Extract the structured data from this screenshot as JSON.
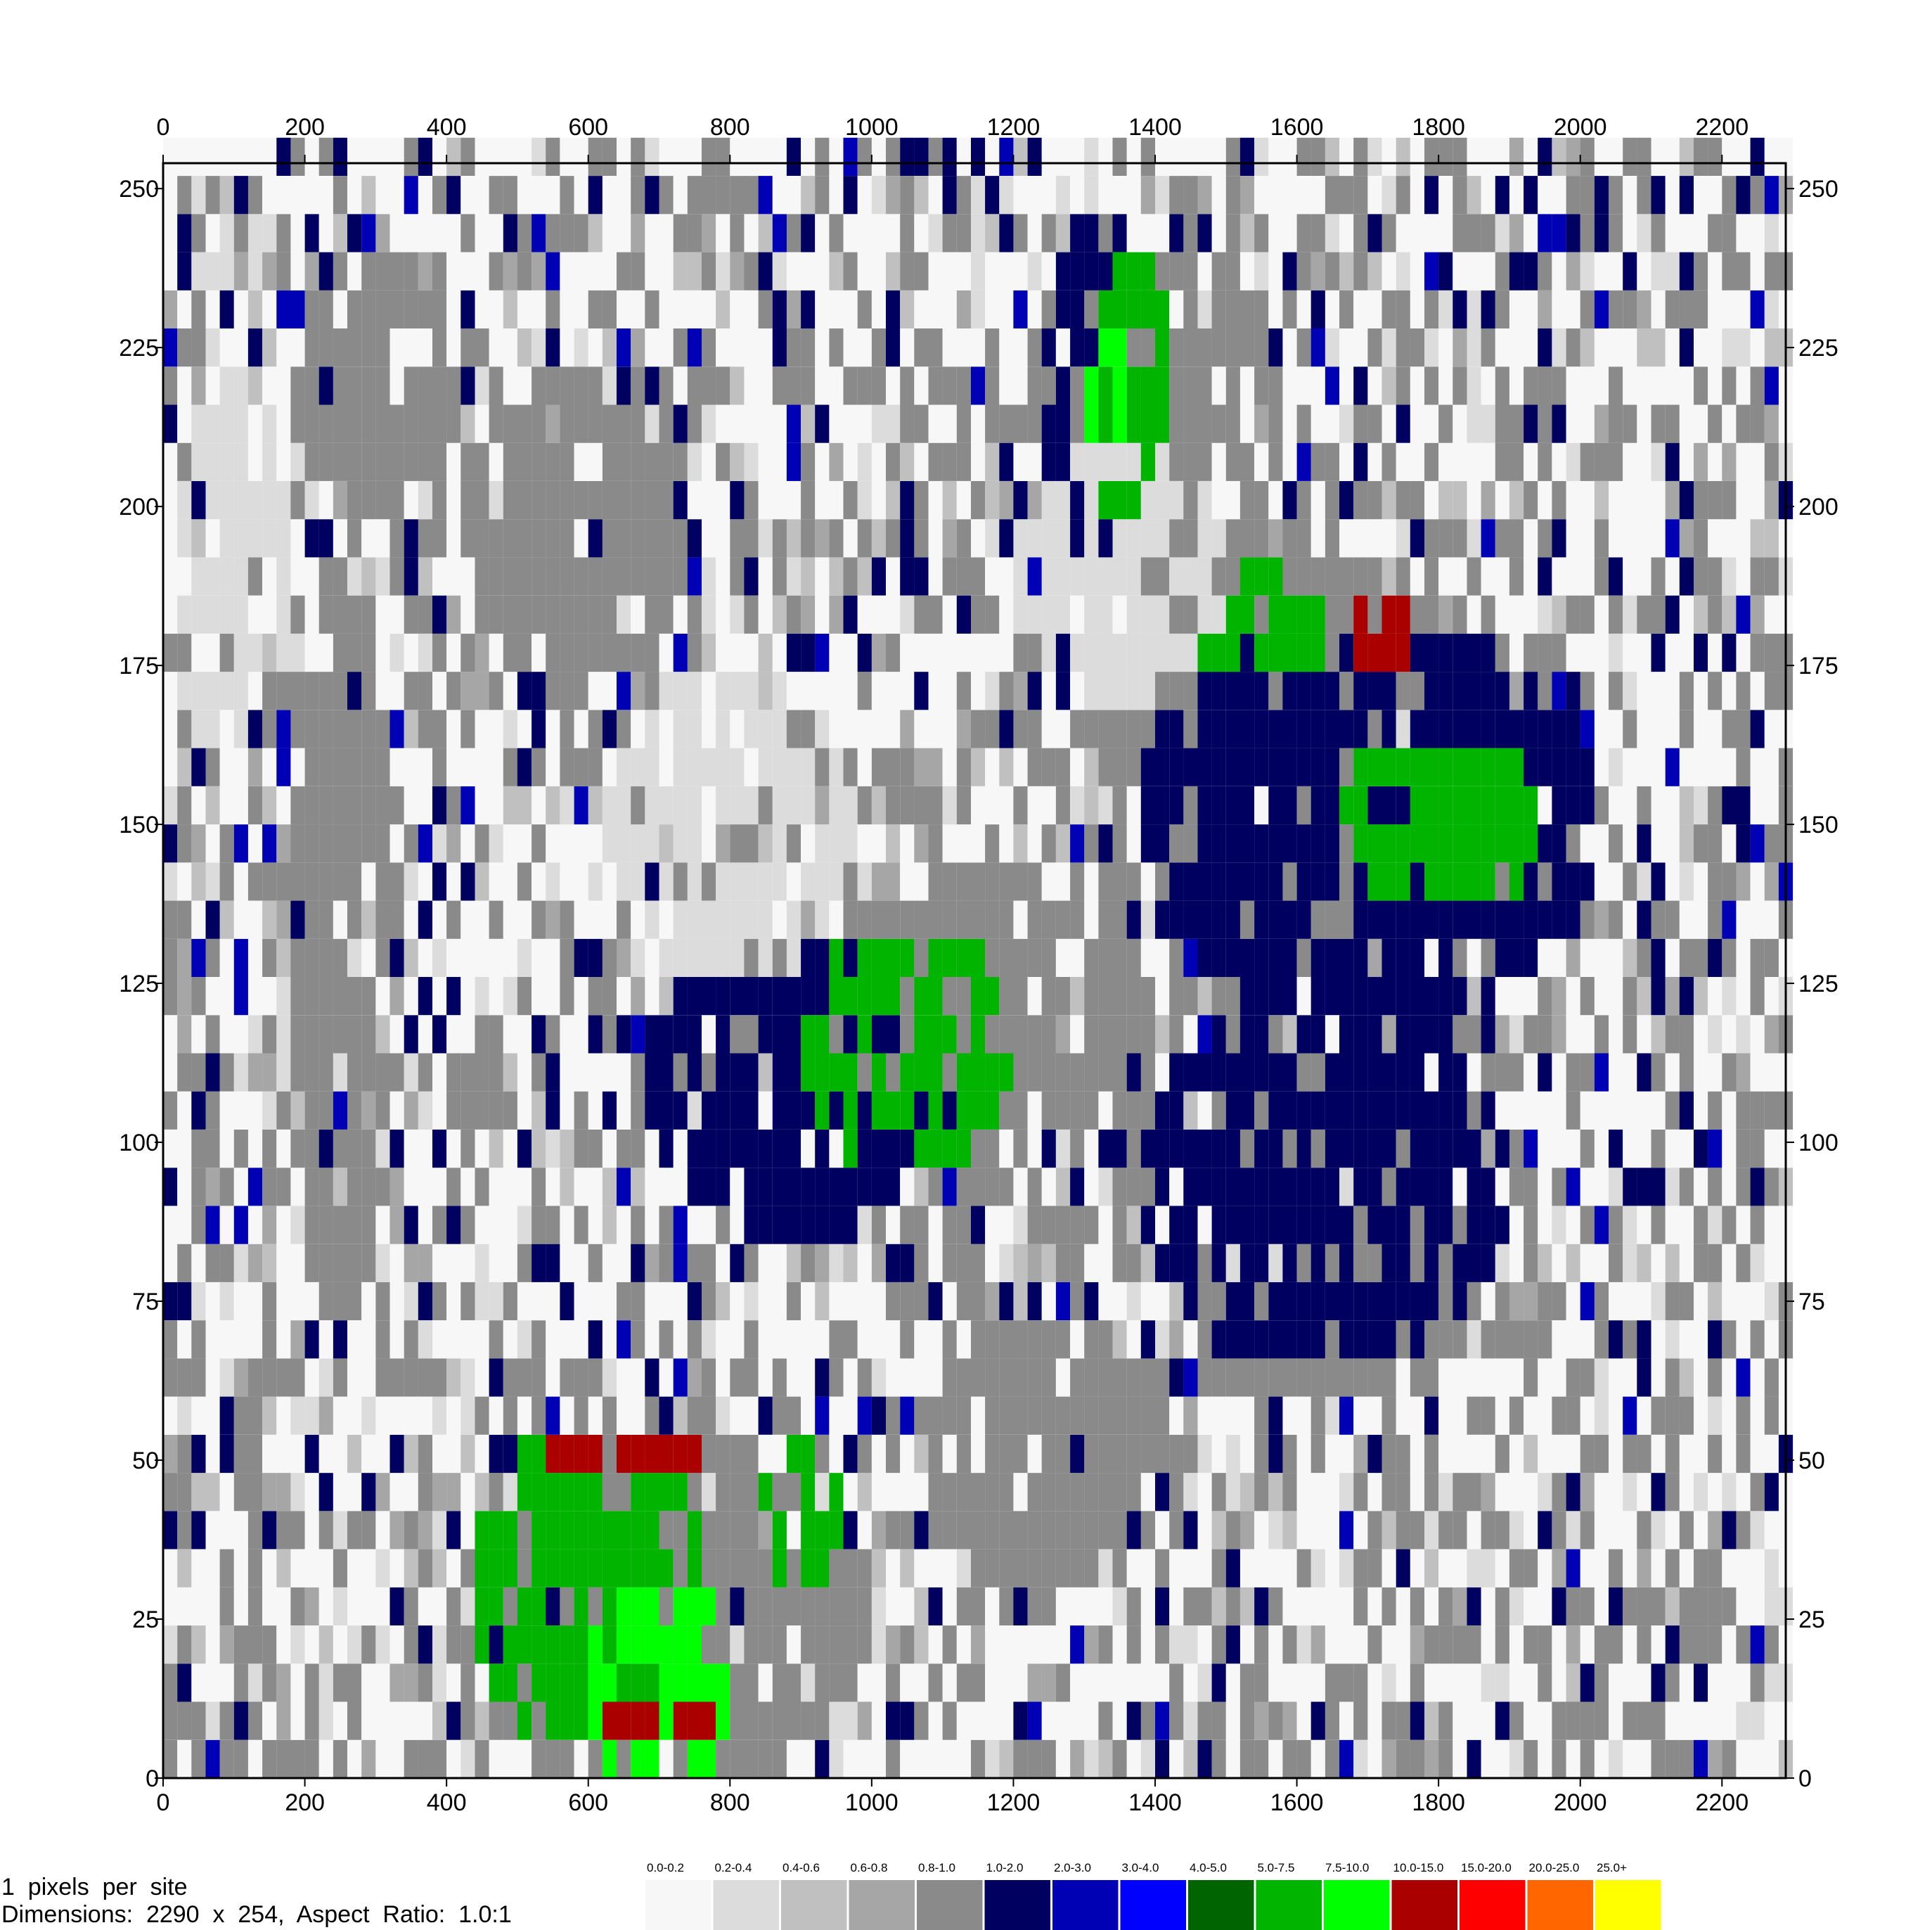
{
  "chart_data": {
    "type": "heatmap",
    "title": "",
    "xlabel": "",
    "ylabel": "",
    "xlim": [
      0,
      2290
    ],
    "ylim": [
      0,
      254
    ],
    "x_ticks": [
      0,
      200,
      400,
      600,
      800,
      1000,
      1200,
      1400,
      1600,
      1800,
      2000,
      2200
    ],
    "y_ticks": [
      0,
      25,
      50,
      75,
      100,
      125,
      150,
      175,
      200,
      225,
      250
    ],
    "legend": {
      "placement": "bottom-right",
      "bins": [
        {
          "label": "0.0-0.2",
          "color": "#f7f7f7"
        },
        {
          "label": "0.2-0.4",
          "color": "#dcdcdc"
        },
        {
          "label": "0.4-0.6",
          "color": "#c0c0c0"
        },
        {
          "label": "0.6-0.8",
          "color": "#a6a6a6"
        },
        {
          "label": "0.8-1.0",
          "color": "#8a8a8a"
        },
        {
          "label": "1.0-2.0",
          "color": "#000060"
        },
        {
          "label": "2.0-3.0",
          "color": "#0000b4"
        },
        {
          "label": "3.0-4.0",
          "color": "#0000ff"
        },
        {
          "label": "4.0-5.0",
          "color": "#006400"
        },
        {
          "label": "5.0-7.5",
          "color": "#00b400"
        },
        {
          "label": "7.5-10.0",
          "color": "#00ff00"
        },
        {
          "label": "10.0-15.0",
          "color": "#aa0000"
        },
        {
          "label": "15.0-20.0",
          "color": "#ff0000"
        },
        {
          "label": "20.0-25.0",
          "color": "#ff6600"
        },
        {
          "label": "25.0+",
          "color": "#ffff00"
        }
      ]
    },
    "regions": [
      {
        "bin": 4,
        "cx": 1400,
        "cy": 215,
        "rx": 190,
        "ry": 28
      },
      {
        "bin": 4,
        "cx": 1600,
        "cy": 165,
        "rx": 280,
        "ry": 30
      },
      {
        "bin": 4,
        "cx": 1150,
        "cy": 120,
        "rx": 250,
        "ry": 22
      },
      {
        "bin": 4,
        "cx": 1650,
        "cy": 85,
        "rx": 230,
        "ry": 28
      },
      {
        "bin": 4,
        "cx": 700,
        "cy": 25,
        "rx": 300,
        "ry": 28
      },
      {
        "bin": 4,
        "cx": 580,
        "cy": 195,
        "rx": 160,
        "ry": 25
      },
      {
        "bin": 4,
        "cx": 250,
        "cy": 130,
        "rx": 80,
        "ry": 60
      },
      {
        "bin": 4,
        "cx": 300,
        "cy": 220,
        "rx": 120,
        "ry": 20
      },
      {
        "bin": 4,
        "cx": 1250,
        "cy": 50,
        "rx": 180,
        "ry": 22
      },
      {
        "bin": 5,
        "cx": 1300,
        "cy": 205,
        "rx": 60,
        "ry": 40
      },
      {
        "bin": 5,
        "cx": 1700,
        "cy": 150,
        "rx": 330,
        "ry": 32
      },
      {
        "bin": 5,
        "cx": 1640,
        "cy": 95,
        "rx": 270,
        "ry": 30
      },
      {
        "bin": 5,
        "cx": 900,
        "cy": 110,
        "rx": 220,
        "ry": 25
      },
      {
        "bin": 9,
        "cx": 1370,
        "cy": 215,
        "rx": 50,
        "ry": 28
      },
      {
        "bin": 9,
        "cx": 1550,
        "cy": 180,
        "rx": 90,
        "ry": 10
      },
      {
        "bin": 9,
        "cx": 1800,
        "cy": 150,
        "rx": 140,
        "ry": 15
      },
      {
        "bin": 9,
        "cx": 1050,
        "cy": 115,
        "rx": 150,
        "ry": 20
      },
      {
        "bin": 9,
        "cx": 600,
        "cy": 30,
        "rx": 170,
        "ry": 25
      },
      {
        "bin": 9,
        "cx": 900,
        "cy": 40,
        "rx": 60,
        "ry": 12
      },
      {
        "bin": 10,
        "cx": 700,
        "cy": 15,
        "rx": 100,
        "ry": 18
      },
      {
        "bin": 10,
        "cx": 1330,
        "cy": 220,
        "rx": 30,
        "ry": 10
      },
      {
        "bin": 11,
        "cx": 1720,
        "cy": 180,
        "rx": 60,
        "ry": 4
      },
      {
        "bin": 11,
        "cx": 650,
        "cy": 52,
        "rx": 120,
        "ry": 5
      },
      {
        "bin": 11,
        "cx": 700,
        "cy": 8,
        "rx": 90,
        "ry": 5
      },
      {
        "bin": 1,
        "cx": 800,
        "cy": 150,
        "rx": 180,
        "ry": 25
      },
      {
        "bin": 1,
        "cx": 1350,
        "cy": 190,
        "rx": 150,
        "ry": 20
      },
      {
        "bin": 1,
        "cx": 100,
        "cy": 190,
        "rx": 80,
        "ry": 30
      }
    ]
  },
  "footer": {
    "line1": "1  pixels  per  site",
    "line2": "Dimensions:  2290  x  254,  Aspect  Ratio:  1.0:1"
  }
}
